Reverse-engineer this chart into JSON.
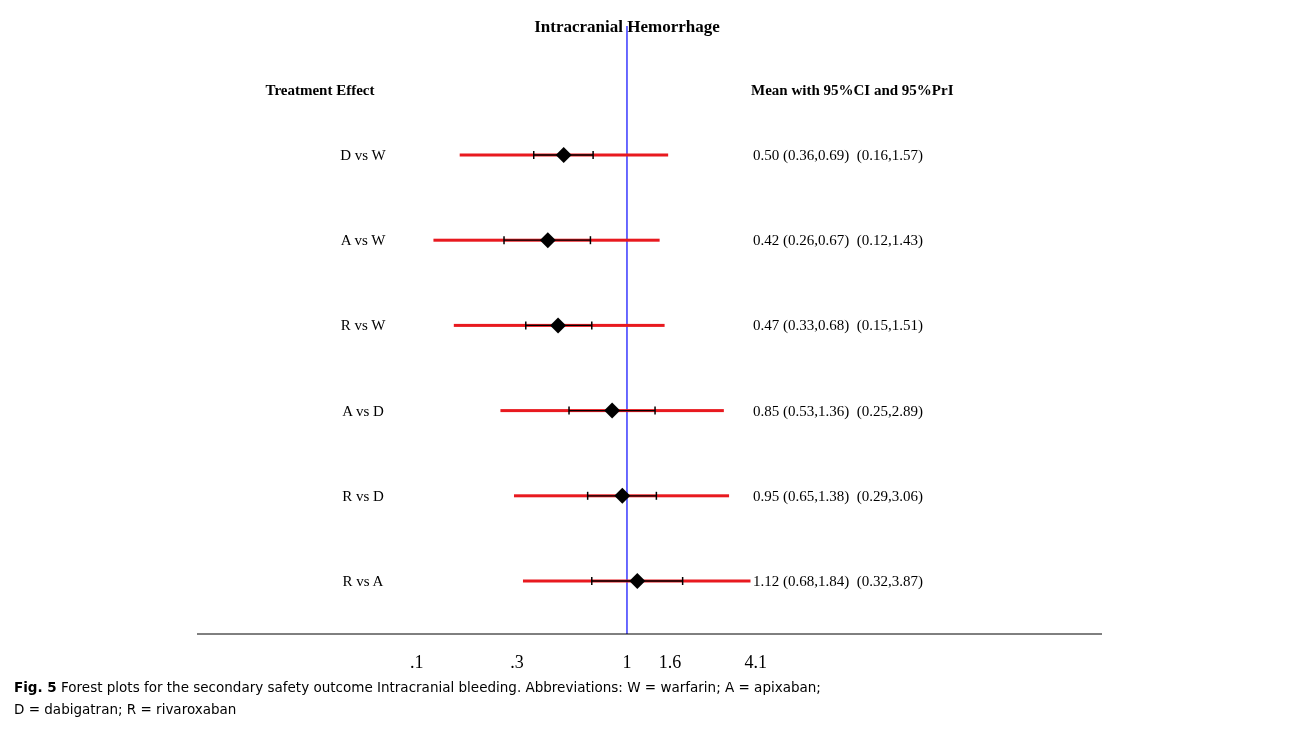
{
  "chart_data": {
    "type": "scatter",
    "orientation": "horizontal",
    "title": "Intracranial Hemorrhage",
    "ylabel": "Treatment Effect",
    "log": "x",
    "categories": [
      "D vs W",
      "A vs W",
      "R vs W",
      "A vs D",
      "R vs D",
      "R vs A"
    ],
    "xlim": [
      0.009,
      182
    ],
    "xticks": [
      {
        "value": 0.1,
        "label": ".1"
      },
      {
        "value": 0.3,
        "label": ".3"
      },
      1,
      1.6,
      4.1
    ],
    "series": [
      {
        "type": "bar",
        "color": "#e8191f",
        "base": [
          0.16,
          0.12,
          0.15,
          0.25,
          0.29,
          0.32
        ],
        "values": [
          1.41,
          1.31,
          1.36,
          2.64,
          2.77,
          3.55
        ]
      },
      {
        "color": "#000000",
        "marker": "diamond",
        "values": [
          0.5,
          0.42,
          0.47,
          0.85,
          0.95,
          1.12
        ],
        "errors": [
          [
            0.36,
            0.69
          ],
          [
            0.26,
            0.67
          ],
          [
            0.33,
            0.68
          ],
          [
            0.53,
            1.36
          ],
          [
            0.65,
            1.38
          ],
          [
            0.68,
            1.84
          ]
        ]
      }
    ],
    "ref_lines": [
      {
        "axis": "x",
        "value": 1,
        "color": "#1a1aff"
      }
    ],
    "annotations": [
      "Mean with 95%CI and 95%PrI",
      "0.50 (0.36,0.69)  (0.16,1.57)",
      "0.42 (0.26,0.67)  (0.12,1.43)",
      "0.47 (0.33,0.68)  (0.15,1.51)",
      "0.85 (0.53,1.36)  (0.25,2.89)",
      "0.95 (0.65,1.38)  (0.29,3.06)",
      "1.12 (0.68,1.84)  (0.32,3.87)",
      "Fig. 5 Forest plots for the secondary safety outcome Intracranial bleeding. Abbreviations: W = warfarin; A = apixaban;",
      "D = dabigatran; R = rivaroxaban"
    ]
  }
}
